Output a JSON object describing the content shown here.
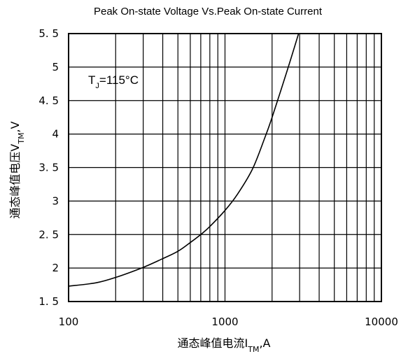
{
  "chart_data": {
    "type": "line",
    "title": "Peak On-state Voltage Vs.Peak On-state Current",
    "xlabel": {
      "prefix": "通态峰值电流I",
      "sub": "TM",
      "suffix": ",A"
    },
    "ylabel": {
      "prefix": "通态峰值电压V",
      "sub": "TM",
      "suffix": ",V"
    },
    "xscale": "log",
    "xlim": [
      100,
      10000
    ],
    "ylim": [
      1.5,
      5.5
    ],
    "x_tick_labels": [
      "100",
      "1000",
      "10000"
    ],
    "y_tick_labels": [
      "1. 5",
      "2",
      "2. 5",
      "3",
      "3. 5",
      "4",
      "4. 5",
      "5",
      "5. 5"
    ],
    "grid": true,
    "annotation": {
      "prefix": "T",
      "sub": "J",
      "suffix": "=115°C"
    },
    "series": [
      {
        "x": [
          100,
          150,
          200,
          300,
          400,
          500,
          600,
          700,
          800,
          1000,
          1200,
          1500,
          1800,
          2000,
          2500,
          3000
        ],
        "y": [
          1.73,
          1.78,
          1.86,
          2.01,
          2.14,
          2.25,
          2.38,
          2.5,
          2.62,
          2.86,
          3.1,
          3.48,
          3.95,
          4.25,
          4.95,
          5.55
        ]
      }
    ]
  }
}
